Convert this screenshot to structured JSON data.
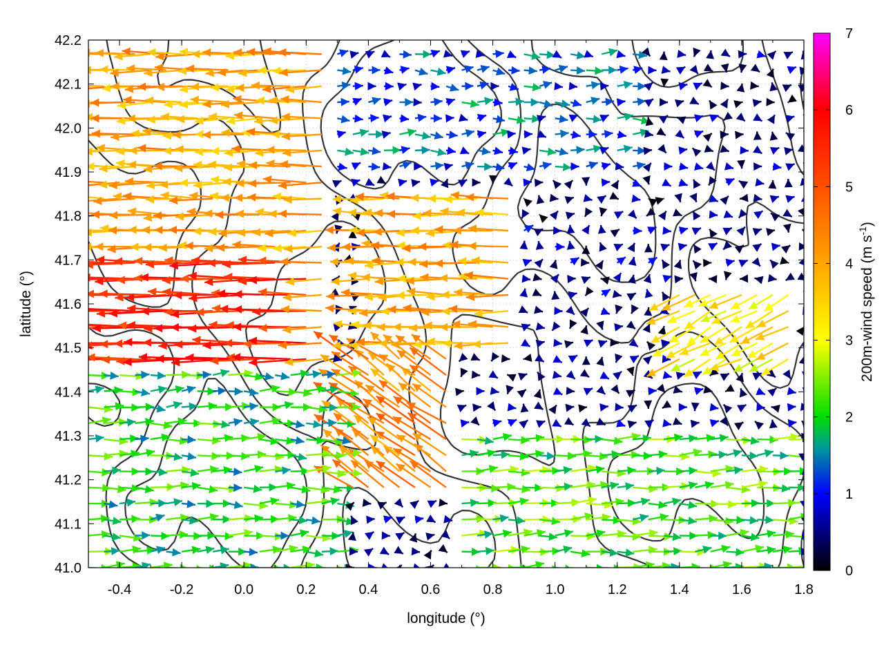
{
  "chart_data": {
    "type": "vector-field",
    "xlabel": "longitude (°)",
    "ylabel": "latitude (°)",
    "colorbar_label": "200m-wind speed (m s-1)",
    "colorbar_label_parts": {
      "main": "200m-wind speed (m s",
      "sup": "-1",
      "tail": ")"
    },
    "xlim": [
      -0.5,
      1.8
    ],
    "ylim": [
      41.0,
      42.2
    ],
    "clim": [
      0,
      7
    ],
    "x_ticks": [
      -0.4,
      -0.2,
      0.0,
      0.2,
      0.4,
      0.6,
      0.8,
      1.0,
      1.2,
      1.4,
      1.6,
      1.8
    ],
    "x_tick_labels": [
      "-0.4",
      "-0.2",
      "0.0",
      "0.2",
      "0.4",
      "0.6",
      "0.8",
      "1.0",
      "1.2",
      "1.4",
      "1.6",
      "1.8"
    ],
    "y_ticks": [
      41.0,
      41.1,
      41.2,
      41.3,
      41.4,
      41.5,
      41.6,
      41.7,
      41.8,
      41.9,
      42.0,
      42.1,
      42.2
    ],
    "y_tick_labels": [
      "41.0",
      "41.1",
      "41.2",
      "41.3",
      "41.4",
      "41.5",
      "41.6",
      "41.7",
      "41.8",
      "41.9",
      "42.0",
      "42.1",
      "42.2"
    ],
    "colorbar_ticks": [
      0,
      1,
      2,
      3,
      4,
      5,
      6,
      7
    ],
    "colorbar_tick_labels": [
      "0",
      "1",
      "2",
      "3",
      "4",
      "5",
      "6",
      "7"
    ],
    "colormap": [
      {
        "value": 0,
        "color": "#000000"
      },
      {
        "value": 1,
        "color": "#0000ff"
      },
      {
        "value": 1.6,
        "color": "#009a9a"
      },
      {
        "value": 2,
        "color": "#00dd00"
      },
      {
        "value": 3,
        "color": "#ffff00"
      },
      {
        "value": 4,
        "color": "#ffa500"
      },
      {
        "value": 5,
        "color": "#ff5000"
      },
      {
        "value": 6,
        "color": "#ff0000"
      },
      {
        "value": 7,
        "color": "#ff00ff"
      }
    ],
    "grid": true,
    "contour_color": "#333333",
    "vectors_note_shown": false,
    "wind_regions": [
      {
        "name_shown": false,
        "lon": [
          -0.5,
          0.25
        ],
        "lat": [
          41.45,
          42.2
        ],
        "u": -4.0,
        "v": 0.0
      },
      {
        "name_shown": false,
        "lon": [
          -0.5,
          0.2
        ],
        "lat": [
          41.45,
          41.7
        ],
        "u": -5.5,
        "v": 0.0
      },
      {
        "name_shown": false,
        "lon": [
          -0.5,
          0.3
        ],
        "lat": [
          41.0,
          41.45
        ],
        "u": 2.0,
        "v": 0.05
      },
      {
        "name_shown": false,
        "lon": [
          0.25,
          1.3
        ],
        "lat": [
          41.9,
          42.2
        ],
        "u": 1.2,
        "v": 0.0
      },
      {
        "name_shown": false,
        "lon": [
          0.35,
          0.9
        ],
        "lat": [
          41.5,
          41.85
        ],
        "u": -4.0,
        "v": 0.05
      },
      {
        "name_shown": false,
        "lon": [
          0.3,
          0.7
        ],
        "lat": [
          41.15,
          41.5
        ],
        "u": -3.5,
        "v": 2.5
      },
      {
        "name_shown": false,
        "lon": [
          0.7,
          1.8
        ],
        "lat": [
          41.0,
          41.3
        ],
        "u": 2.2,
        "v": 0.1
      },
      {
        "name_shown": false,
        "lon": [
          1.4,
          1.8
        ],
        "lat": [
          41.45,
          41.65
        ],
        "u": -3.0,
        "v": -1.5
      },
      {
        "name_shown": false,
        "lon": [
          0.9,
          1.4
        ],
        "lat": [
          41.6,
          41.8
        ],
        "u": 0.4,
        "v": 0.3
      }
    ]
  }
}
